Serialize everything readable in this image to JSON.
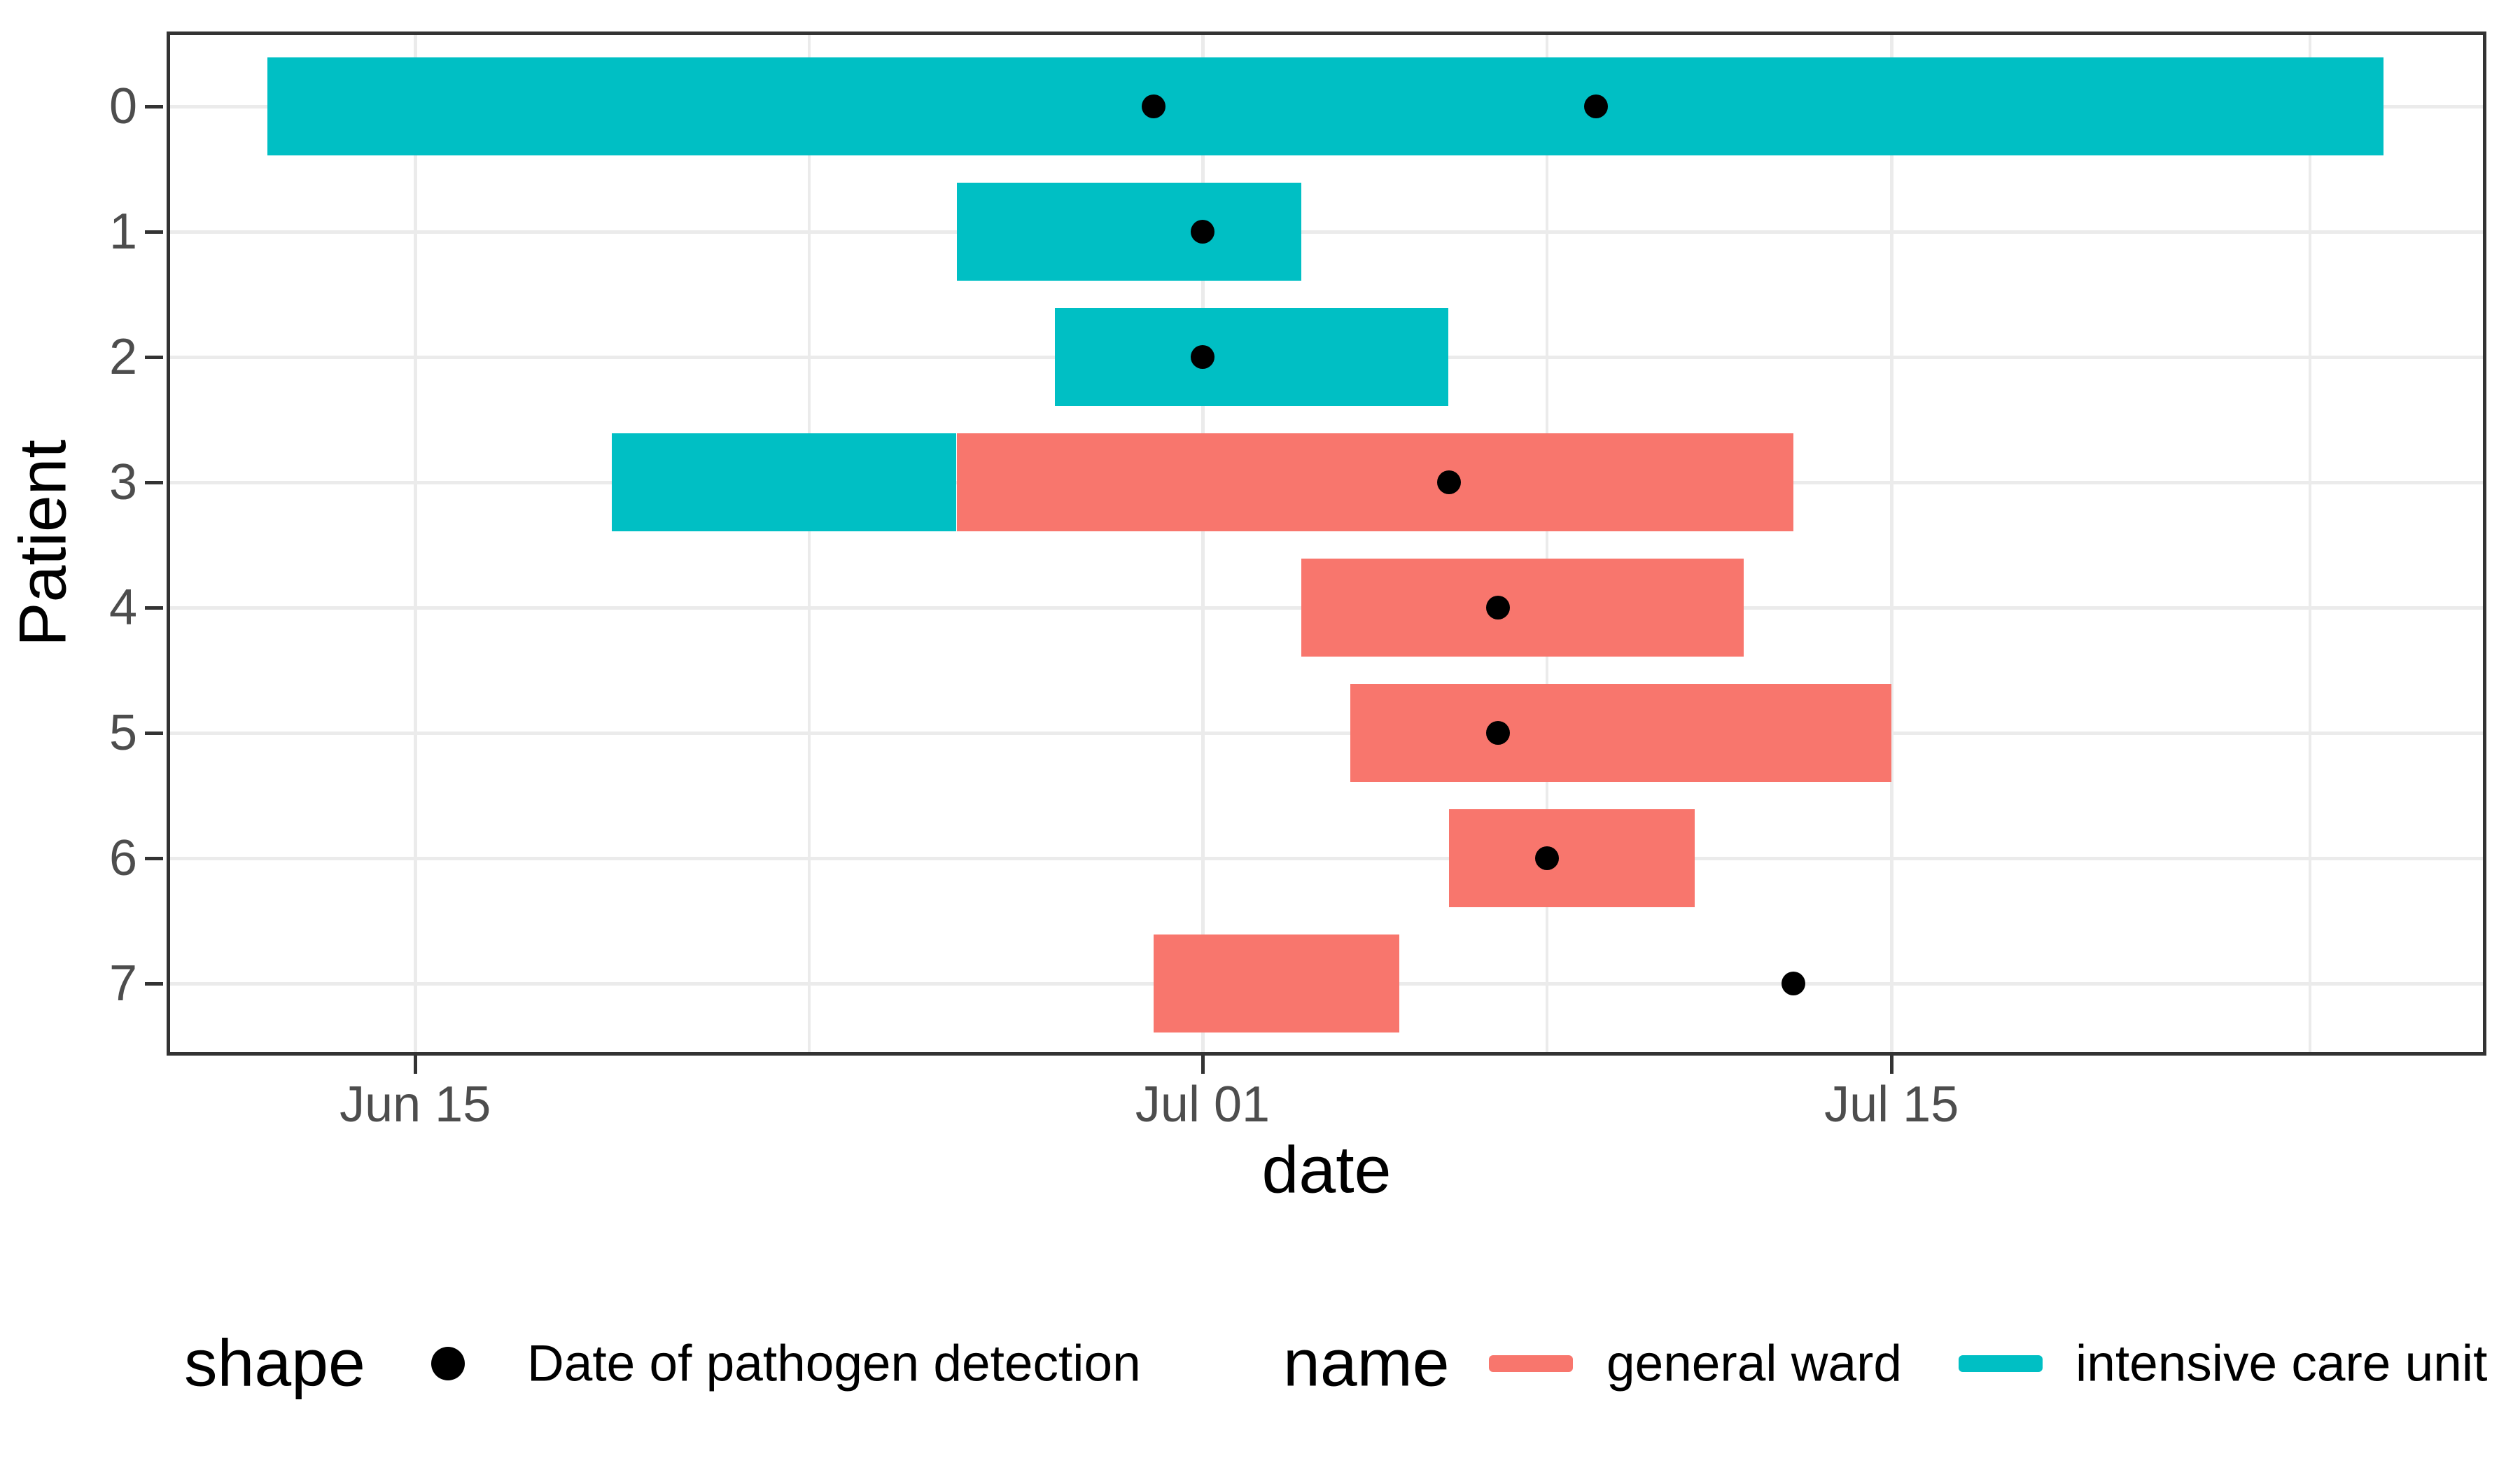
{
  "figure": {
    "background": "#FFFFFF"
  },
  "y_axis": {
    "title": "Patient",
    "tick_labels": [
      "0",
      "1",
      "2",
      "3",
      "4",
      "5",
      "6",
      "7"
    ]
  },
  "x_axis": {
    "title": "date",
    "tick_labels": [
      "Jun 15",
      "Jul 01",
      "Jul 15"
    ]
  },
  "legend": {
    "shape": {
      "title": "shape",
      "key_icon": "black-dot",
      "label": "Date of pathogen detection"
    },
    "name": {
      "title": "name",
      "items": [
        {
          "label": "general ward",
          "color": "#F8766D"
        },
        {
          "label": "intensive care unit",
          "color": "#00BFC4"
        }
      ]
    }
  },
  "colors": {
    "general_ward": "#F8766D",
    "intensive_care_unit": "#00BFC4",
    "grid": "#EBEBEB",
    "axis_line": "#333333",
    "tick_label": "#4D4D4D",
    "detection_dot": "#000000"
  },
  "chart_data": {
    "type": "bar",
    "variant": "horizontal-gantt-timeline",
    "title": "",
    "xlabel": "date",
    "ylabel": "Patient",
    "grid": true,
    "legend_position": "bottom",
    "categories": [
      "0",
      "1",
      "2",
      "3",
      "4",
      "5",
      "6",
      "7"
    ],
    "day_index_note": "day 1 = Jun 01, day 31 = Jul 01",
    "x_domain_days": [
      9.95,
      57.09
    ],
    "x_ticks": [
      {
        "label": "Jun 15",
        "day": 15
      },
      {
        "label": "Jul 01",
        "day": 31
      },
      {
        "label": "Jul 15",
        "day": 45
      }
    ],
    "x_minor_tick_days": [
      23,
      38,
      53.5
    ],
    "series_colors": {
      "general ward": "#F8766D",
      "intensive care unit": "#00BFC4"
    },
    "patients": [
      {
        "patient": "0",
        "stays": [
          {
            "name": "intensive care unit",
            "start": "Jun 12",
            "end": "Jul 25",
            "start_day": 12,
            "end_day": 55
          }
        ],
        "detections": [
          {
            "date": "Jun 30",
            "day": 30
          },
          {
            "date": "Jul 09",
            "day": 39
          }
        ]
      },
      {
        "patient": "1",
        "stays": [
          {
            "name": "intensive care unit",
            "start": "Jun 26",
            "end": "Jul 03",
            "start_day": 26,
            "end_day": 33
          }
        ],
        "detections": [
          {
            "date": "Jul 01",
            "day": 31
          }
        ]
      },
      {
        "patient": "2",
        "stays": [
          {
            "name": "intensive care unit",
            "start": "Jun 28",
            "end": "Jul 06",
            "start_day": 28,
            "end_day": 36
          }
        ],
        "detections": [
          {
            "date": "Jul 01",
            "day": 31
          }
        ]
      },
      {
        "patient": "3",
        "stays": [
          {
            "name": "intensive care unit",
            "start": "Jun 19",
            "end": "Jun 26",
            "start_day": 19,
            "end_day": 26
          },
          {
            "name": "general ward",
            "start": "Jun 26",
            "end": "Jul 13",
            "start_day": 26,
            "end_day": 43
          }
        ],
        "detections": [
          {
            "date": "Jul 06",
            "day": 36
          }
        ]
      },
      {
        "patient": "4",
        "stays": [
          {
            "name": "general ward",
            "start": "Jul 03",
            "end": "Jul 12",
            "start_day": 33,
            "end_day": 42
          }
        ],
        "detections": [
          {
            "date": "Jul 07",
            "day": 37
          }
        ]
      },
      {
        "patient": "5",
        "stays": [
          {
            "name": "general ward",
            "start": "Jul 04",
            "end": "Jul 15",
            "start_day": 34,
            "end_day": 45
          }
        ],
        "detections": [
          {
            "date": "Jul 07",
            "day": 37
          }
        ]
      },
      {
        "patient": "6",
        "stays": [
          {
            "name": "general ward",
            "start": "Jul 06",
            "end": "Jul 11",
            "start_day": 36,
            "end_day": 41
          }
        ],
        "detections": [
          {
            "date": "Jul 08",
            "day": 38
          }
        ]
      },
      {
        "patient": "7",
        "stays": [
          {
            "name": "general ward",
            "start": "Jun 30",
            "end": "Jul 05",
            "start_day": 30,
            "end_day": 35
          }
        ],
        "detections": [
          {
            "date": "Jul 13",
            "day": 43
          }
        ]
      }
    ]
  }
}
